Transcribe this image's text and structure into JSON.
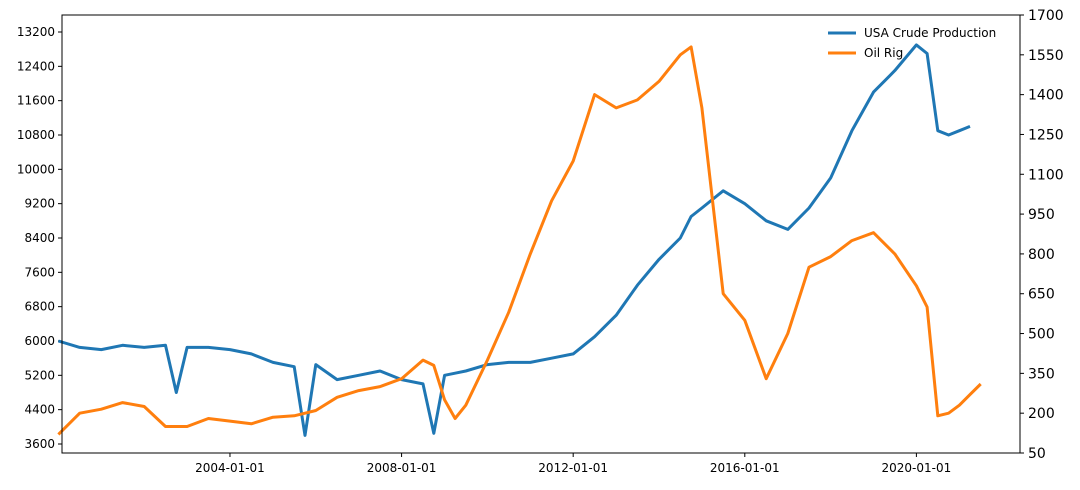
{
  "chart_data": {
    "type": "line",
    "x": [
      "2000-01-01",
      "2000-07-01",
      "2001-01-01",
      "2001-07-01",
      "2002-01-01",
      "2002-07-01",
      "2002-10-01",
      "2003-01-01",
      "2003-07-01",
      "2004-01-01",
      "2004-07-01",
      "2005-01-01",
      "2005-07-01",
      "2005-10-01",
      "2006-01-01",
      "2006-07-01",
      "2007-01-01",
      "2007-07-01",
      "2008-01-01",
      "2008-07-01",
      "2008-10-01",
      "2009-01-01",
      "2009-04-01",
      "2009-07-01",
      "2010-01-01",
      "2010-07-01",
      "2011-01-01",
      "2011-07-01",
      "2012-01-01",
      "2012-07-01",
      "2013-01-01",
      "2013-07-01",
      "2014-01-01",
      "2014-07-01",
      "2014-10-01",
      "2015-01-01",
      "2015-07-01",
      "2016-01-01",
      "2016-07-01",
      "2017-01-01",
      "2017-07-01",
      "2018-01-01",
      "2018-07-01",
      "2019-01-01",
      "2019-07-01",
      "2020-01-01",
      "2020-04-01",
      "2020-07-01",
      "2020-10-01",
      "2021-01-01",
      "2021-04-01",
      "2021-07-01"
    ],
    "series": [
      {
        "name": "USA Crude Production",
        "color": "#1f77b4",
        "axis": "y",
        "values": [
          6000,
          5850,
          5800,
          5900,
          5850,
          5900,
          4800,
          5850,
          5850,
          5800,
          5700,
          5500,
          5400,
          3800,
          5450,
          5100,
          5200,
          5300,
          5100,
          5000,
          3850,
          5200,
          5250,
          5300,
          5450,
          5500,
          5500,
          5600,
          5700,
          6100,
          6600,
          7300,
          7900,
          8400,
          8900,
          9100,
          9500,
          9200,
          8800,
          8600,
          9100,
          9800,
          10900,
          11800,
          12300,
          12900,
          12700,
          10900,
          10800,
          10900,
          11000,
          null
        ]
      },
      {
        "name": "Oil Rig",
        "color": "#ff7f0e",
        "axis": "y2",
        "values": [
          120,
          200,
          215,
          240,
          225,
          150,
          150,
          150,
          180,
          170,
          160,
          185,
          190,
          200,
          210,
          260,
          285,
          300,
          330,
          400,
          380,
          250,
          180,
          230,
          400,
          580,
          800,
          1000,
          1150,
          1400,
          1350,
          1380,
          1450,
          1550,
          1580,
          1350,
          650,
          550,
          330,
          500,
          750,
          790,
          850,
          880,
          800,
          680,
          600,
          190,
          200,
          230,
          270,
          310
        ]
      }
    ],
    "xlim": [
      "2000-02-01",
      "2022-06-01"
    ],
    "xticks": [
      "2004-01-01",
      "2008-01-01",
      "2012-01-01",
      "2016-01-01",
      "2020-01-01"
    ],
    "ylim": [
      3390,
      13596
    ],
    "yticks": [
      3600,
      4400,
      5200,
      6000,
      6800,
      7600,
      8400,
      9200,
      10000,
      10800,
      11600,
      12400,
      13200
    ],
    "y2lim": [
      50,
      1700
    ],
    "y2ticks": [
      50,
      200,
      350,
      500,
      650,
      800,
      950,
      1100,
      1250,
      1400,
      1550,
      1700
    ],
    "legend": "upper right",
    "grid": false
  }
}
